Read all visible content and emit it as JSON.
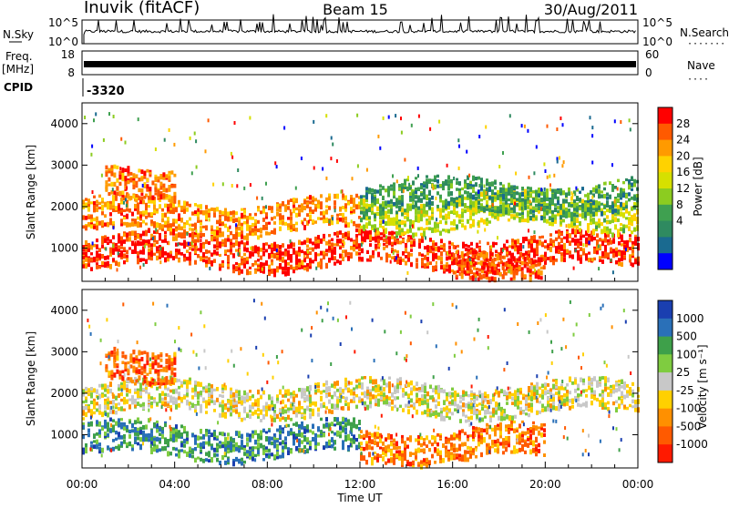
{
  "header": {
    "station": "Inuvik (fitACF)",
    "beam": "Beam 15",
    "date": "30/Aug/2011"
  },
  "top_panels": {
    "nsky_label": "N.Sky",
    "nsky_ticks": [
      "10^5",
      "10^0"
    ],
    "nsearch_label": "N.Search",
    "nsearch_ticks": [
      "10^5",
      "10^0"
    ],
    "freq_label_line1": "Freq.",
    "freq_label_line2": "[MHz]",
    "freq_ticks": [
      "18",
      "8"
    ],
    "nave_label": "Nave",
    "nave_ticks": [
      "60",
      "0"
    ],
    "cpid_label": "CPID",
    "cpid_value": "-3320"
  },
  "chart_data": [
    {
      "type": "heatmap",
      "panel": "power",
      "ylabel": "Slant Range [km]",
      "yticks": [
        "1000",
        "2000",
        "3000",
        "4000"
      ],
      "ylim": [
        200,
        4500
      ],
      "colorbar_label": "Power [dB]",
      "colorbar_ticks": [
        "28",
        "24",
        "20",
        "16",
        "12",
        "8",
        "4"
      ],
      "colorbar_colors": [
        "#ff0000",
        "#ff5a00",
        "#ff9a00",
        "#ffd200",
        "#d6e000",
        "#8ccc20",
        "#3fa050",
        "#2f8a60",
        "#1a6a90",
        "#0000ff"
      ],
      "bands": [
        {
          "t_start": 0,
          "t_end": 24,
          "r": 950,
          "level": 0.95
        },
        {
          "t_start": 0,
          "t_end": 12,
          "r": 1800,
          "level": 0.8
        },
        {
          "t_start": 12,
          "t_end": 24,
          "r": 1900,
          "level": 0.55
        },
        {
          "t_start": 1,
          "t_end": 4,
          "r": 2700,
          "level": 0.85
        },
        {
          "t_start": 12,
          "t_end": 24,
          "r": 2250,
          "level": 0.3
        },
        {
          "t_start": 16,
          "t_end": 20,
          "r": 650,
          "level": 0.9
        }
      ]
    },
    {
      "type": "heatmap",
      "panel": "velocity",
      "ylabel": "Slant Range [km]",
      "xlabel": "Time UT",
      "xticks": [
        "00:00",
        "04:00",
        "08:00",
        "12:00",
        "16:00",
        "20:00",
        "00:00"
      ],
      "yticks": [
        "1000",
        "2000",
        "3000",
        "4000"
      ],
      "ylim": [
        200,
        4500
      ],
      "colorbar_label": "Velocity [m s⁻¹]",
      "colorbar_ticks": [
        "1000",
        "500",
        "100",
        "25",
        "-25",
        "-100",
        "-500",
        "-1000"
      ],
      "colorbar_colors": [
        "#1a3fb0",
        "#2a70b8",
        "#3ea04a",
        "#7fcc40",
        "#c8c8c8",
        "#ffd000",
        "#ff9000",
        "#ff5a00",
        "#ff1a00"
      ],
      "bands": [
        {
          "t_start": 0,
          "t_end": 24,
          "r": 1900,
          "level": 0.45
        },
        {
          "t_start": 0,
          "t_end": 12,
          "r": 900,
          "level": 0.8
        },
        {
          "t_start": 12,
          "t_end": 20,
          "r": 800,
          "level": 0.2
        },
        {
          "t_start": 1,
          "t_end": 4,
          "r": 2800,
          "level": 0.15
        }
      ]
    }
  ]
}
